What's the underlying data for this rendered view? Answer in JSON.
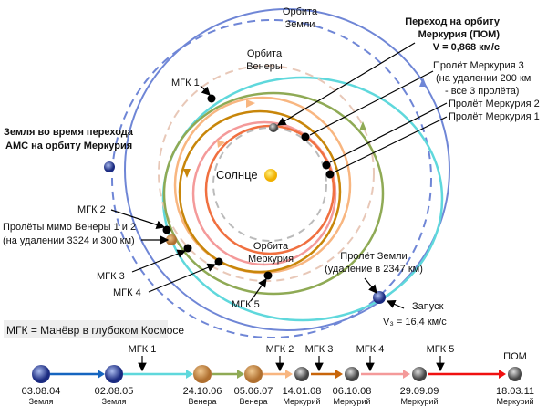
{
  "labels": {
    "earth_orbit": [
      "Орбита",
      "Земли"
    ],
    "venus_orbit": [
      "Орбита",
      "Венеры"
    ],
    "mercury_orbit": [
      "Орбита",
      "Меркурия"
    ],
    "sun": "Солнце",
    "moi": [
      "Переход на орбиту",
      "Меркурия (ПОМ)",
      "V = 0,868 км/с"
    ],
    "flyby3": [
      "Пролёт Меркурия 3",
      "(на удалении 200 км",
      "- все 3 пролёта)"
    ],
    "flyby2": "Пролёт Меркурия 2",
    "flyby1": "Пролёт Меркурия 1",
    "earth_at_moi": [
      "Земля во время перехода",
      "АМС на орбиту Меркурия"
    ],
    "mgk1": "МГК 1",
    "mgk2": "МГК 2",
    "mgk3": "МГК 3",
    "mgk4": "МГК 4",
    "mgk5": "МГК 5",
    "venus_flybys": [
      "Пролёты мимо Венеры 1 и 2",
      "(на удалении 3324 и 300 км)"
    ],
    "earth_flyby": [
      "Пролёт Земли",
      "(удаление в 2347 км)"
    ],
    "launch": [
      "Запуск",
      "V₃ = 16,4 км/с"
    ],
    "legend": "МГК = Манёвр в глубоком Космосе"
  },
  "timeline": {
    "events": [
      {
        "date": "03.08.04",
        "body": "Земля",
        "planet": "earth"
      },
      {
        "date": "02.08.05",
        "body": "Земля",
        "planet": "earth"
      },
      {
        "date": "24.10.06",
        "body": "Венера",
        "planet": "venus"
      },
      {
        "date": "05.06.07",
        "body": "Венера",
        "planet": "venus"
      },
      {
        "date": "14.01.08",
        "body": "Меркурий",
        "planet": "mercury"
      },
      {
        "date": "06.10.08",
        "body": "Меркурий",
        "planet": "mercury"
      },
      {
        "date": "29.09.09",
        "body": "Меркурий",
        "planet": "mercury"
      },
      {
        "date": "18.03.11",
        "body": "Меркурий",
        "planet": "mercury"
      }
    ],
    "segment_colors": [
      "#1565c0",
      "#5fd8dc",
      "#8faa55",
      "#f8b680",
      "#c8650a",
      "#f49a9a",
      "#f01010"
    ],
    "maneuvers": [
      "МГК 1",
      "МГК 2",
      "МГК 3",
      "МГК 4",
      "МГК 5"
    ],
    "final": "ПОМ"
  },
  "colors": {
    "earth_orbit": "#6f86d6",
    "venus_orbit": "#e8c8b8",
    "mercury_orbit": "#bbbbbb",
    "sun": "#f5c800"
  }
}
